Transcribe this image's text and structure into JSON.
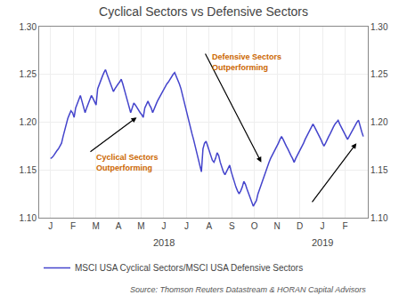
{
  "chart_data": {
    "type": "line",
    "title": "Cyclical Sectors vs Defensive Sectors",
    "x": [
      0,
      0.0693,
      0.1387,
      0.208,
      0.2774,
      0.3467,
      0.4161,
      0.4854,
      0.5548,
      0.6241,
      0.6935,
      0.7628,
      0.8322,
      0.9015,
      0.9709,
      1.0402,
      1.1095,
      1.1789,
      1.2482,
      1.3176,
      1.3869,
      1.4563,
      1.5256,
      1.595,
      1.6643,
      1.7337,
      1.803,
      1.8724,
      1.9417,
      2.0111,
      2.0804,
      2.1497,
      2.2191,
      2.2884,
      2.3578,
      2.4271,
      2.4965,
      2.5658,
      2.6352,
      2.7045,
      2.7739,
      2.8432,
      2.9126,
      2.9819,
      3.0513,
      3.1206,
      3.1899,
      3.2593,
      3.3286,
      3.398,
      3.4673,
      3.5367,
      3.606,
      3.6754,
      3.7447,
      3.8141,
      3.8834,
      3.9528,
      4.0221,
      4.0915,
      4.1608,
      4.2302,
      4.2995,
      4.3688,
      4.4382,
      4.5075,
      4.5769,
      4.6462,
      4.7156,
      4.7849,
      4.8543,
      4.9236,
      4.993,
      5.0623,
      5.1317,
      5.201,
      5.2704,
      5.3397,
      5.409,
      5.4784,
      5.5477,
      5.6171,
      5.6864,
      5.7558,
      5.8251,
      5.8945,
      5.9638,
      6.0332,
      6.1025,
      6.1719,
      6.2412,
      6.3106,
      6.3799,
      6.4492,
      6.5186,
      6.5879,
      6.6573,
      6.7266,
      6.796,
      6.8653,
      6.9347,
      7.004,
      7.0734,
      7.1427,
      7.2121,
      7.2814,
      7.3508,
      7.4201,
      7.4894,
      7.5588,
      7.6281,
      7.6975,
      7.7668,
      7.8362,
      7.9055,
      7.9749,
      8.0442,
      8.1136,
      8.1829,
      8.2523,
      8.3216,
      8.391,
      8.4603,
      8.5296,
      8.599,
      8.6683,
      8.7377,
      8.807,
      8.8764,
      8.9457,
      9.0151,
      9.0844,
      9.1538,
      9.2231,
      9.2925,
      9.3618,
      9.4312,
      9.5005,
      9.5698,
      9.6392,
      9.7085,
      9.7779,
      9.8472,
      9.9166,
      9.9859,
      10.0553,
      10.1246,
      10.194,
      10.2633,
      10.3327,
      10.402,
      10.4714,
      10.5407,
      10.6101,
      10.6794,
      10.7487,
      10.8181,
      10.8874,
      10.9568,
      11.0261,
      11.0955,
      11.1648,
      11.2342,
      11.3035,
      11.3729,
      11.4422,
      11.5116,
      11.5809,
      11.6503,
      11.7196,
      11.7889,
      11.8583,
      11.9276,
      11.997,
      12.0663,
      12.1357,
      12.205,
      12.2744,
      12.3437,
      12.4131,
      12.4824,
      12.5518,
      12.6211,
      12.6905,
      12.7598,
      12.8291,
      12.8985,
      12.9678,
      13.0372,
      13.1065,
      13.1759,
      13.2452,
      13.3146,
      13.3839,
      13.4533,
      13.5226,
      13.592,
      13.6613,
      13.7307,
      13.8
    ],
    "series": [
      {
        "name": "MSCI USA Cyclical Sectors/MSCI USA Defensive Sectors",
        "color": "#4444cc",
        "values": [
          1.162,
          1.163,
          1.165,
          1.168,
          1.17,
          1.172,
          1.175,
          1.178,
          1.185,
          1.192,
          1.198,
          1.204,
          1.208,
          1.212,
          1.21,
          1.205,
          1.215,
          1.22,
          1.225,
          1.228,
          1.222,
          1.215,
          1.21,
          1.215,
          1.22,
          1.225,
          1.228,
          1.225,
          1.222,
          1.218,
          1.235,
          1.24,
          1.245,
          1.248,
          1.252,
          1.255,
          1.25,
          1.245,
          1.24,
          1.235,
          1.232,
          1.235,
          1.238,
          1.24,
          1.242,
          1.245,
          1.24,
          1.235,
          1.228,
          1.222,
          1.215,
          1.21,
          1.215,
          1.22,
          1.218,
          1.215,
          1.212,
          1.21,
          1.208,
          1.205,
          1.215,
          1.218,
          1.222,
          1.218,
          1.215,
          1.21,
          1.215,
          1.218,
          1.222,
          1.225,
          1.228,
          1.232,
          1.235,
          1.238,
          1.24,
          1.242,
          1.245,
          1.248,
          1.25,
          1.252,
          1.248,
          1.245,
          1.24,
          1.235,
          1.228,
          1.222,
          1.215,
          1.208,
          1.202,
          1.195,
          1.188,
          1.182,
          1.175,
          1.168,
          1.16,
          1.155,
          1.148,
          1.172,
          1.178,
          1.18,
          1.175,
          1.17,
          1.165,
          1.16,
          1.158,
          1.162,
          1.168,
          1.165,
          1.158,
          1.152,
          1.148,
          1.145,
          1.148,
          1.152,
          1.155,
          1.148,
          1.142,
          1.138,
          1.132,
          1.128,
          1.125,
          1.128,
          1.132,
          1.138,
          1.135,
          1.13,
          1.125,
          1.12,
          1.115,
          1.112,
          1.115,
          1.118,
          1.125,
          1.13,
          1.135,
          1.14,
          1.145,
          1.15,
          1.155,
          1.158,
          1.162,
          1.165,
          1.168,
          1.172,
          1.175,
          1.178,
          1.182,
          1.185,
          1.182,
          1.178,
          1.175,
          1.172,
          1.168,
          1.165,
          1.162,
          1.158,
          1.162,
          1.165,
          1.168,
          1.172,
          1.175,
          1.178,
          1.182,
          1.185,
          1.188,
          1.192,
          1.195,
          1.198,
          1.195,
          1.192,
          1.188,
          1.185,
          1.182,
          1.178,
          1.175,
          1.178,
          1.182,
          1.185,
          1.188,
          1.192,
          1.195,
          1.198,
          1.2,
          1.202,
          1.198,
          1.195,
          1.192,
          1.188,
          1.185,
          1.182,
          1.185,
          1.188,
          1.192,
          1.195,
          1.198,
          1.2,
          1.202,
          1.195,
          1.19,
          1.185
        ]
      }
    ],
    "xlim": [
      -0.5,
      14.0
    ],
    "xticks": [
      {
        "value": 0,
        "label": "J"
      },
      {
        "value": 1,
        "label": "F"
      },
      {
        "value": 2,
        "label": "M"
      },
      {
        "value": 3,
        "label": "A"
      },
      {
        "value": 4,
        "label": "M"
      },
      {
        "value": 5,
        "label": "J"
      },
      {
        "value": 6,
        "label": "J"
      },
      {
        "value": 7,
        "label": "A"
      },
      {
        "value": 8,
        "label": "S"
      },
      {
        "value": 9,
        "label": "O"
      },
      {
        "value": 10,
        "label": "N"
      },
      {
        "value": 11,
        "label": "D"
      },
      {
        "value": 12,
        "label": "J"
      },
      {
        "value": 13,
        "label": "F"
      }
    ],
    "ylim": [
      1.1,
      1.3
    ],
    "yticks": [
      {
        "value": 1.1,
        "label": "1.10"
      },
      1.15,
      {
        "value": 1.2,
        "label": "1.20"
      },
      1.25,
      {
        "value": 1.3,
        "label": "1.30"
      }
    ],
    "y2lim": [
      1.1,
      1.3
    ],
    "y2ticks": [
      {
        "value": 1.1,
        "label": "1.10"
      },
      1.15,
      {
        "value": 1.2,
        "label": "1.20"
      },
      1.25,
      {
        "value": 1.3,
        "label": "1.30"
      }
    ],
    "grid": true,
    "legend": "bottom left",
    "annotations": [
      {
        "text": "Cyclical Sectors\nOutperforming",
        "color": "#cc6600",
        "arrow_start": [
          1.7,
          1.168
        ],
        "arrow_end": [
          3.8,
          1.205
        ]
      },
      {
        "text": "Defensive Sectors\nOutperforming",
        "color": "#cc6600",
        "arrow_start": [
          6.8,
          1.273
        ],
        "arrow_end": [
          9.3,
          1.158
        ]
      },
      {
        "arrow_start": [
          11.5,
          1.115
        ],
        "arrow_end": [
          13.5,
          1.178
        ]
      },
      {
        "text": "2018",
        "x": 5
      },
      {
        "text": "2019",
        "x": 12
      }
    ],
    "source": "Source: Thomson Reuters Datastream & HORAN Capital Advisors"
  }
}
